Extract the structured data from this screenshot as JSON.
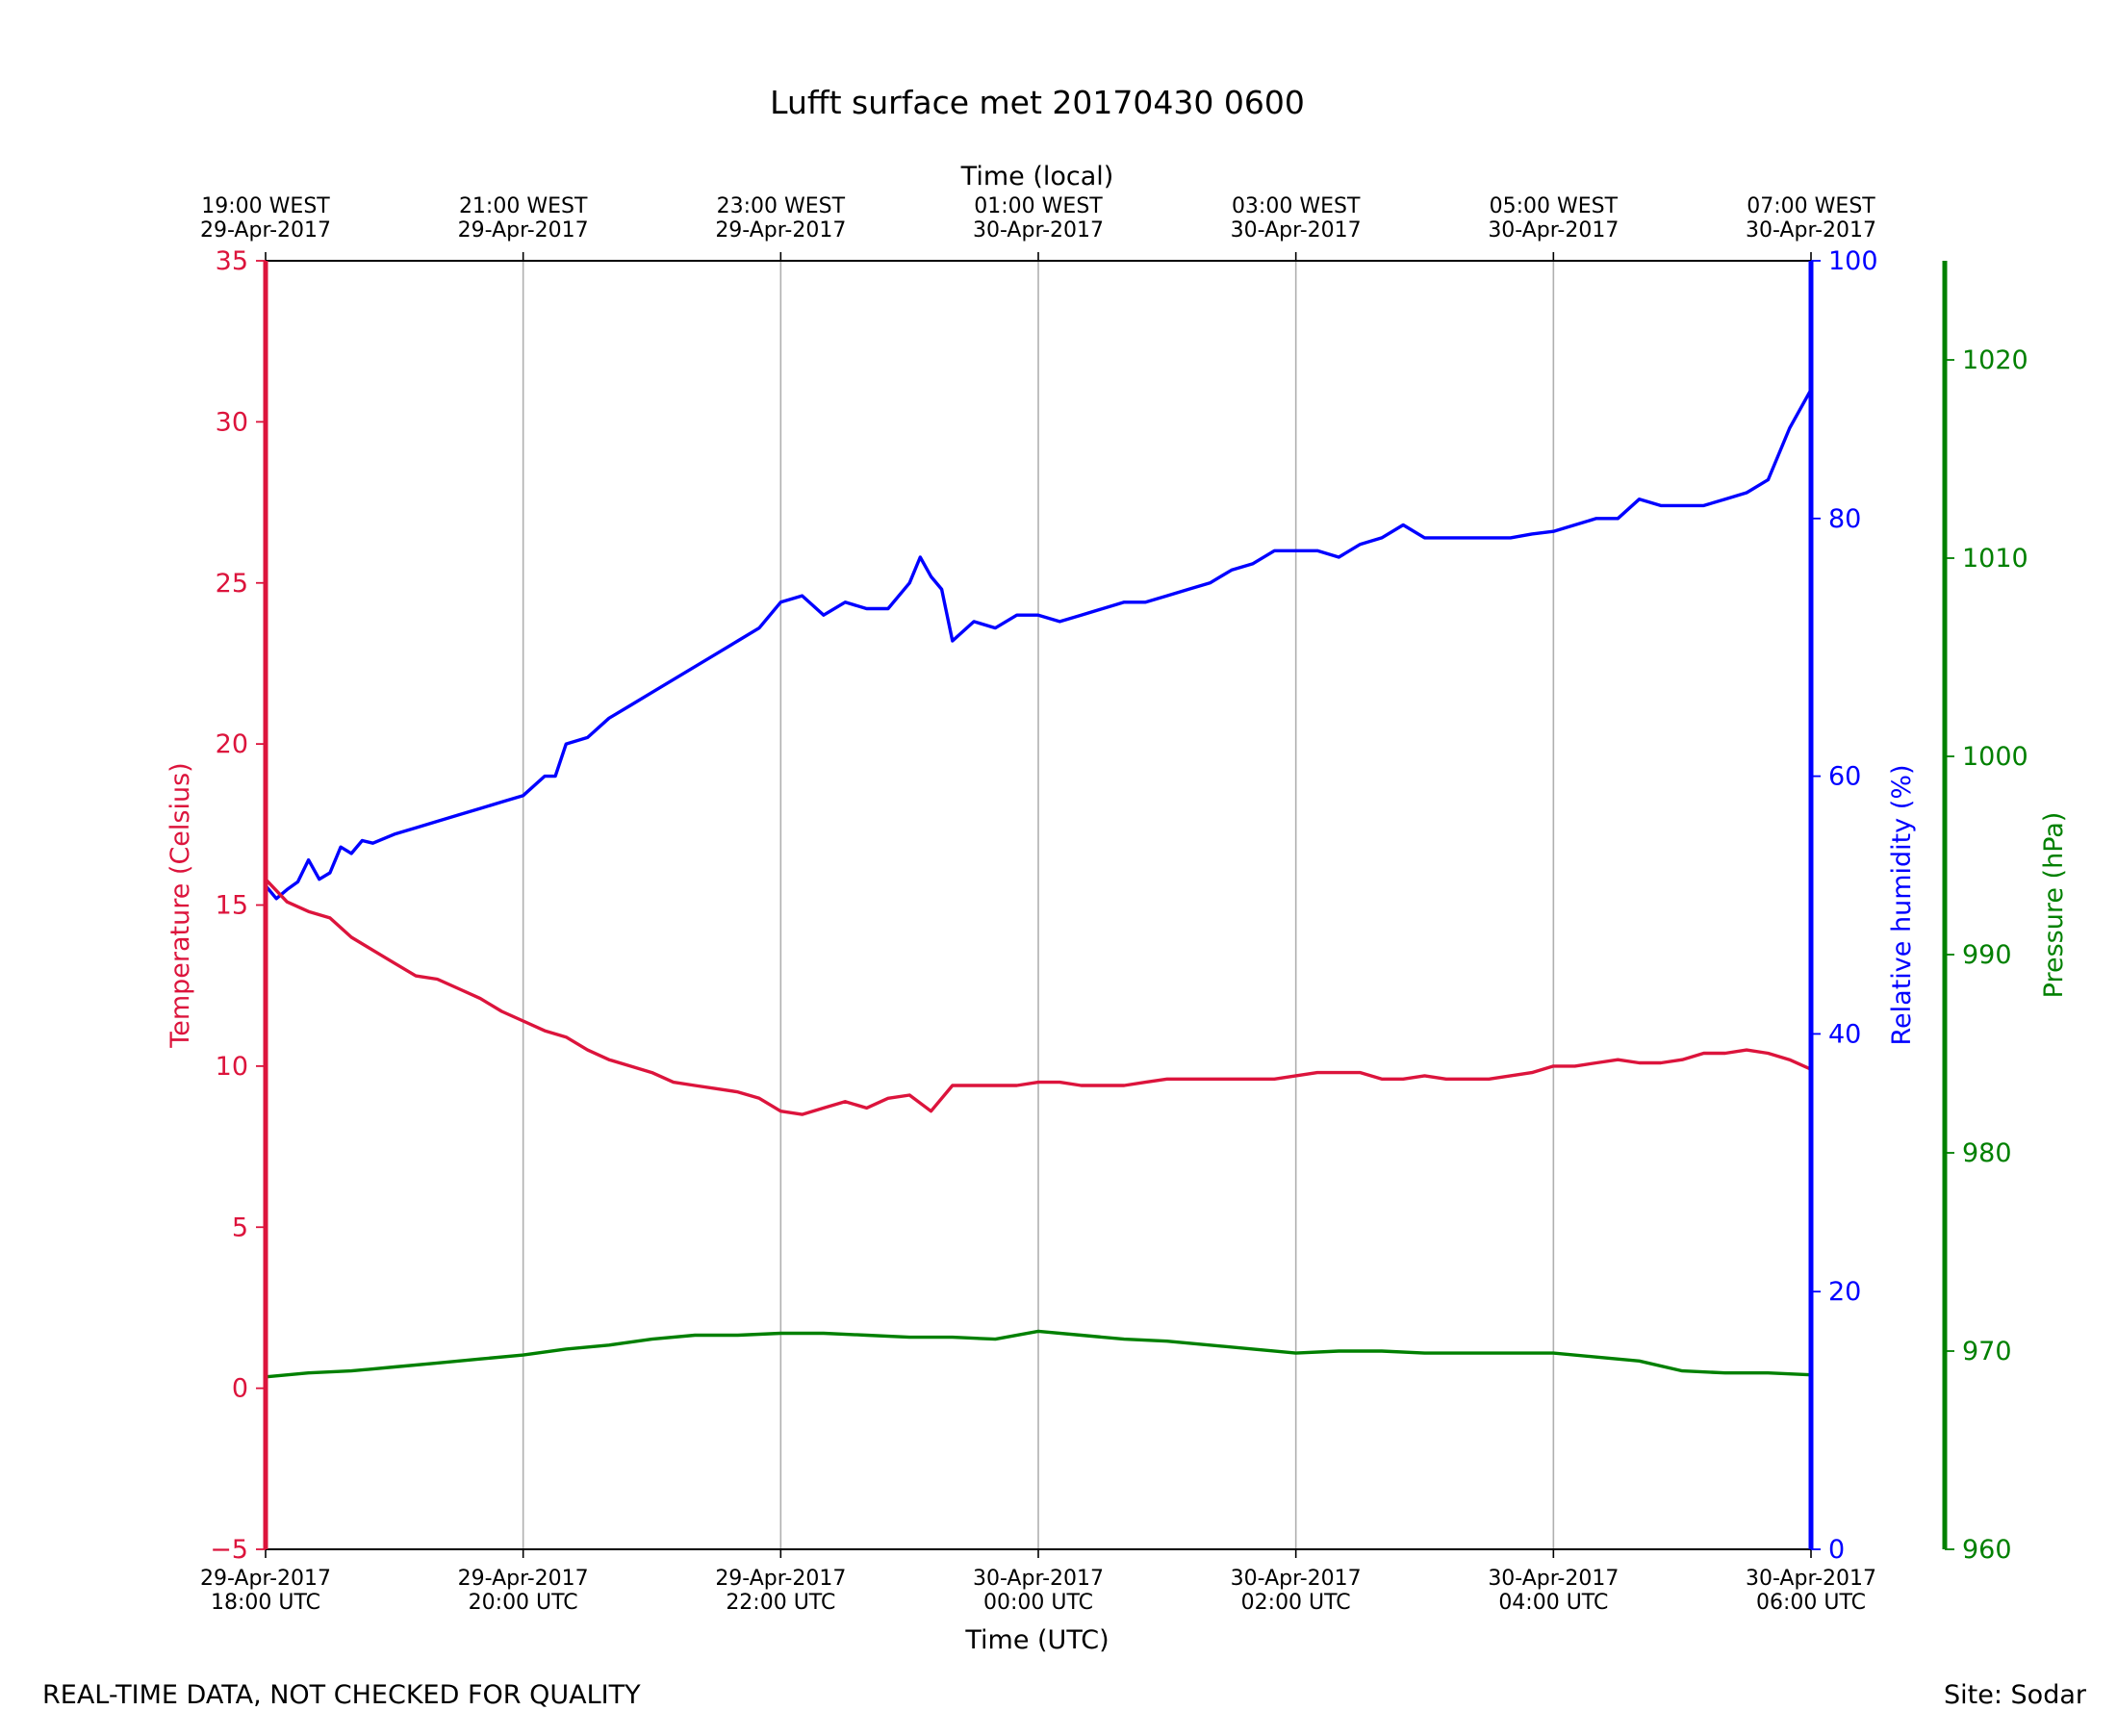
{
  "chart_data": {
    "type": "line",
    "title": "Lufft surface met 20170430 0600",
    "xlabel": "Time (UTC)",
    "top_xlabel": "Time (local)",
    "xlim": [
      "2017-04-29T18:00Z",
      "2017-04-30T06:00Z"
    ],
    "x_ticks": [
      {
        "time": "2017-04-29T18:00Z",
        "bottom": [
          "29-Apr-2017",
          "18:00 UTC"
        ],
        "top": [
          "19:00 WEST",
          "29-Apr-2017"
        ]
      },
      {
        "time": "2017-04-29T20:00Z",
        "bottom": [
          "29-Apr-2017",
          "20:00 UTC"
        ],
        "top": [
          "21:00 WEST",
          "29-Apr-2017"
        ]
      },
      {
        "time": "2017-04-29T22:00Z",
        "bottom": [
          "29-Apr-2017",
          "22:00 UTC"
        ],
        "top": [
          "23:00 WEST",
          "29-Apr-2017"
        ]
      },
      {
        "time": "2017-04-30T00:00Z",
        "bottom": [
          "30-Apr-2017",
          "00:00 UTC"
        ],
        "top": [
          "01:00 WEST",
          "30-Apr-2017"
        ]
      },
      {
        "time": "2017-04-30T02:00Z",
        "bottom": [
          "30-Apr-2017",
          "02:00 UTC"
        ],
        "top": [
          "03:00 WEST",
          "30-Apr-2017"
        ]
      },
      {
        "time": "2017-04-30T04:00Z",
        "bottom": [
          "30-Apr-2017",
          "04:00 UTC"
        ],
        "top": [
          "05:00 WEST",
          "30-Apr-2017"
        ]
      },
      {
        "time": "2017-04-30T06:00Z",
        "bottom": [
          "30-Apr-2017",
          "06:00 UTC"
        ],
        "top": [
          "07:00 WEST",
          "30-Apr-2017"
        ]
      }
    ],
    "grid": {
      "vertical": true,
      "horizontal": false
    },
    "axes": {
      "temperature": {
        "label": "Temperature (Celsius)",
        "ylim": [
          -5,
          35
        ],
        "ticks": [
          -5,
          0,
          5,
          10,
          15,
          20,
          25,
          30,
          35
        ],
        "color": "#dc143c",
        "side": "left"
      },
      "humidity": {
        "label": "Relative humidity (%)",
        "ylim": [
          0,
          100
        ],
        "ticks": [
          0,
          20,
          40,
          60,
          80,
          100
        ],
        "color": "#0000ff",
        "side": "right"
      },
      "pressure": {
        "label": "Pressure (hPa)",
        "ylim": [
          960,
          1025
        ],
        "ticks": [
          960,
          970,
          980,
          990,
          1000,
          1010,
          1020
        ],
        "color": "#008000",
        "side": "right-offset"
      }
    },
    "series": [
      {
        "axis": "humidity",
        "color": "#0000ff",
        "points": [
          [
            "2017-04-29T18:00Z",
            51.5
          ],
          [
            "2017-04-29T18:05Z",
            50.5
          ],
          [
            "2017-04-29T18:10Z",
            51.2
          ],
          [
            "2017-04-29T18:15Z",
            51.8
          ],
          [
            "2017-04-29T18:20Z",
            53.5
          ],
          [
            "2017-04-29T18:25Z",
            52.0
          ],
          [
            "2017-04-29T18:30Z",
            52.5
          ],
          [
            "2017-04-29T18:35Z",
            54.5
          ],
          [
            "2017-04-29T18:40Z",
            54.0
          ],
          [
            "2017-04-29T18:45Z",
            55.0
          ],
          [
            "2017-04-29T18:50Z",
            54.8
          ],
          [
            "2017-04-29T19:00Z",
            55.5
          ],
          [
            "2017-04-29T19:10Z",
            56.0
          ],
          [
            "2017-04-29T19:20Z",
            56.5
          ],
          [
            "2017-04-29T19:30Z",
            57.0
          ],
          [
            "2017-04-29T19:40Z",
            57.5
          ],
          [
            "2017-04-29T19:50Z",
            58.0
          ],
          [
            "2017-04-29T20:00Z",
            58.5
          ],
          [
            "2017-04-29T20:10Z",
            60.0
          ],
          [
            "2017-04-29T20:15Z",
            60.0
          ],
          [
            "2017-04-29T20:20Z",
            62.5
          ],
          [
            "2017-04-29T20:30Z",
            63.0
          ],
          [
            "2017-04-29T20:40Z",
            64.5
          ],
          [
            "2017-04-29T20:50Z",
            65.5
          ],
          [
            "2017-04-29T21:00Z",
            66.5
          ],
          [
            "2017-04-29T21:10Z",
            67.5
          ],
          [
            "2017-04-29T21:20Z",
            68.5
          ],
          [
            "2017-04-29T21:30Z",
            69.5
          ],
          [
            "2017-04-29T21:40Z",
            70.5
          ],
          [
            "2017-04-29T21:50Z",
            71.5
          ],
          [
            "2017-04-29T22:00Z",
            73.5
          ],
          [
            "2017-04-29T22:10Z",
            74.0
          ],
          [
            "2017-04-29T22:20Z",
            72.5
          ],
          [
            "2017-04-29T22:30Z",
            73.5
          ],
          [
            "2017-04-29T22:40Z",
            73.0
          ],
          [
            "2017-04-29T22:50Z",
            73.0
          ],
          [
            "2017-04-29T23:00Z",
            75.0
          ],
          [
            "2017-04-29T23:05Z",
            77.0
          ],
          [
            "2017-04-29T23:10Z",
            75.5
          ],
          [
            "2017-04-29T23:15Z",
            74.5
          ],
          [
            "2017-04-29T23:20Z",
            70.5
          ],
          [
            "2017-04-29T23:30Z",
            72.0
          ],
          [
            "2017-04-29T23:40Z",
            71.5
          ],
          [
            "2017-04-29T23:50Z",
            72.5
          ],
          [
            "2017-04-30T00:00Z",
            72.5
          ],
          [
            "2017-04-30T00:10Z",
            72.0
          ],
          [
            "2017-04-30T00:20Z",
            72.5
          ],
          [
            "2017-04-30T00:30Z",
            73.0
          ],
          [
            "2017-04-30T00:40Z",
            73.5
          ],
          [
            "2017-04-30T00:50Z",
            73.5
          ],
          [
            "2017-04-30T01:00Z",
            74.0
          ],
          [
            "2017-04-30T01:10Z",
            74.5
          ],
          [
            "2017-04-30T01:20Z",
            75.0
          ],
          [
            "2017-04-30T01:30Z",
            76.0
          ],
          [
            "2017-04-30T01:40Z",
            76.5
          ],
          [
            "2017-04-30T01:50Z",
            77.5
          ],
          [
            "2017-04-30T02:00Z",
            77.5
          ],
          [
            "2017-04-30T02:10Z",
            77.5
          ],
          [
            "2017-04-30T02:20Z",
            77.0
          ],
          [
            "2017-04-30T02:30Z",
            78.0
          ],
          [
            "2017-04-30T02:40Z",
            78.5
          ],
          [
            "2017-04-30T02:50Z",
            79.5
          ],
          [
            "2017-04-30T03:00Z",
            78.5
          ],
          [
            "2017-04-30T03:10Z",
            78.5
          ],
          [
            "2017-04-30T03:20Z",
            78.5
          ],
          [
            "2017-04-30T03:30Z",
            78.5
          ],
          [
            "2017-04-30T03:40Z",
            78.5
          ],
          [
            "2017-04-30T03:50Z",
            78.8
          ],
          [
            "2017-04-30T04:00Z",
            79.0
          ],
          [
            "2017-04-30T04:10Z",
            79.5
          ],
          [
            "2017-04-30T04:20Z",
            80.0
          ],
          [
            "2017-04-30T04:30Z",
            80.0
          ],
          [
            "2017-04-30T04:40Z",
            81.5
          ],
          [
            "2017-04-30T04:50Z",
            81.0
          ],
          [
            "2017-04-30T05:00Z",
            81.0
          ],
          [
            "2017-04-30T05:10Z",
            81.0
          ],
          [
            "2017-04-30T05:20Z",
            81.5
          ],
          [
            "2017-04-30T05:30Z",
            82.0
          ],
          [
            "2017-04-30T05:40Z",
            83.0
          ],
          [
            "2017-04-30T05:50Z",
            87.0
          ],
          [
            "2017-04-30T06:00Z",
            90.0
          ]
        ]
      },
      {
        "axis": "temperature",
        "color": "#dc143c",
        "points": [
          [
            "2017-04-29T18:00Z",
            15.8
          ],
          [
            "2017-04-29T18:10Z",
            15.1
          ],
          [
            "2017-04-29T18:20Z",
            14.8
          ],
          [
            "2017-04-29T18:30Z",
            14.6
          ],
          [
            "2017-04-29T18:40Z",
            14.0
          ],
          [
            "2017-04-29T18:50Z",
            13.6
          ],
          [
            "2017-04-29T19:00Z",
            13.2
          ],
          [
            "2017-04-29T19:10Z",
            12.8
          ],
          [
            "2017-04-29T19:20Z",
            12.7
          ],
          [
            "2017-04-29T19:30Z",
            12.4
          ],
          [
            "2017-04-29T19:40Z",
            12.1
          ],
          [
            "2017-04-29T19:50Z",
            11.7
          ],
          [
            "2017-04-29T20:00Z",
            11.4
          ],
          [
            "2017-04-29T20:10Z",
            11.1
          ],
          [
            "2017-04-29T20:20Z",
            10.9
          ],
          [
            "2017-04-29T20:30Z",
            10.5
          ],
          [
            "2017-04-29T20:40Z",
            10.2
          ],
          [
            "2017-04-29T20:50Z",
            10.0
          ],
          [
            "2017-04-29T21:00Z",
            9.8
          ],
          [
            "2017-04-29T21:10Z",
            9.5
          ],
          [
            "2017-04-29T21:20Z",
            9.4
          ],
          [
            "2017-04-29T21:30Z",
            9.3
          ],
          [
            "2017-04-29T21:40Z",
            9.2
          ],
          [
            "2017-04-29T21:50Z",
            9.0
          ],
          [
            "2017-04-29T22:00Z",
            8.6
          ],
          [
            "2017-04-29T22:10Z",
            8.5
          ],
          [
            "2017-04-29T22:20Z",
            8.7
          ],
          [
            "2017-04-29T22:30Z",
            8.9
          ],
          [
            "2017-04-29T22:40Z",
            8.7
          ],
          [
            "2017-04-29T22:50Z",
            9.0
          ],
          [
            "2017-04-29T23:00Z",
            9.1
          ],
          [
            "2017-04-29T23:10Z",
            8.6
          ],
          [
            "2017-04-29T23:20Z",
            9.4
          ],
          [
            "2017-04-29T23:30Z",
            9.4
          ],
          [
            "2017-04-29T23:40Z",
            9.4
          ],
          [
            "2017-04-29T23:50Z",
            9.4
          ],
          [
            "2017-04-30T00:00Z",
            9.5
          ],
          [
            "2017-04-30T00:10Z",
            9.5
          ],
          [
            "2017-04-30T00:20Z",
            9.4
          ],
          [
            "2017-04-30T00:30Z",
            9.4
          ],
          [
            "2017-04-30T00:40Z",
            9.4
          ],
          [
            "2017-04-30T00:50Z",
            9.5
          ],
          [
            "2017-04-30T01:00Z",
            9.6
          ],
          [
            "2017-04-30T01:10Z",
            9.6
          ],
          [
            "2017-04-30T01:20Z",
            9.6
          ],
          [
            "2017-04-30T01:30Z",
            9.6
          ],
          [
            "2017-04-30T01:40Z",
            9.6
          ],
          [
            "2017-04-30T01:50Z",
            9.6
          ],
          [
            "2017-04-30T02:00Z",
            9.7
          ],
          [
            "2017-04-30T02:10Z",
            9.8
          ],
          [
            "2017-04-30T02:20Z",
            9.8
          ],
          [
            "2017-04-30T02:30Z",
            9.8
          ],
          [
            "2017-04-30T02:40Z",
            9.6
          ],
          [
            "2017-04-30T02:50Z",
            9.6
          ],
          [
            "2017-04-30T03:00Z",
            9.7
          ],
          [
            "2017-04-30T03:10Z",
            9.6
          ],
          [
            "2017-04-30T03:20Z",
            9.6
          ],
          [
            "2017-04-30T03:30Z",
            9.6
          ],
          [
            "2017-04-30T03:40Z",
            9.7
          ],
          [
            "2017-04-30T03:50Z",
            9.8
          ],
          [
            "2017-04-30T04:00Z",
            10.0
          ],
          [
            "2017-04-30T04:10Z",
            10.0
          ],
          [
            "2017-04-30T04:20Z",
            10.1
          ],
          [
            "2017-04-30T04:30Z",
            10.2
          ],
          [
            "2017-04-30T04:40Z",
            10.1
          ],
          [
            "2017-04-30T04:50Z",
            10.1
          ],
          [
            "2017-04-30T05:00Z",
            10.2
          ],
          [
            "2017-04-30T05:10Z",
            10.4
          ],
          [
            "2017-04-30T05:20Z",
            10.4
          ],
          [
            "2017-04-30T05:30Z",
            10.5
          ],
          [
            "2017-04-30T05:40Z",
            10.4
          ],
          [
            "2017-04-30T05:50Z",
            10.2
          ],
          [
            "2017-04-30T06:00Z",
            9.9
          ]
        ]
      },
      {
        "axis": "pressure",
        "color": "#008000",
        "points": [
          [
            "2017-04-29T18:00Z",
            968.7
          ],
          [
            "2017-04-29T18:20Z",
            968.9
          ],
          [
            "2017-04-29T18:40Z",
            969.0
          ],
          [
            "2017-04-29T19:00Z",
            969.2
          ],
          [
            "2017-04-29T19:20Z",
            969.4
          ],
          [
            "2017-04-29T19:40Z",
            969.6
          ],
          [
            "2017-04-29T20:00Z",
            969.8
          ],
          [
            "2017-04-29T20:20Z",
            970.1
          ],
          [
            "2017-04-29T20:40Z",
            970.3
          ],
          [
            "2017-04-29T21:00Z",
            970.6
          ],
          [
            "2017-04-29T21:20Z",
            970.8
          ],
          [
            "2017-04-29T21:40Z",
            970.8
          ],
          [
            "2017-04-29T22:00Z",
            970.9
          ],
          [
            "2017-04-29T22:20Z",
            970.9
          ],
          [
            "2017-04-29T22:40Z",
            970.8
          ],
          [
            "2017-04-29T23:00Z",
            970.7
          ],
          [
            "2017-04-29T23:20Z",
            970.7
          ],
          [
            "2017-04-29T23:40Z",
            970.6
          ],
          [
            "2017-04-30T00:00Z",
            971.0
          ],
          [
            "2017-04-30T00:20Z",
            970.8
          ],
          [
            "2017-04-30T00:40Z",
            970.6
          ],
          [
            "2017-04-30T01:00Z",
            970.5
          ],
          [
            "2017-04-30T01:20Z",
            970.3
          ],
          [
            "2017-04-30T01:40Z",
            970.1
          ],
          [
            "2017-04-30T02:00Z",
            969.9
          ],
          [
            "2017-04-30T02:20Z",
            970.0
          ],
          [
            "2017-04-30T02:40Z",
            970.0
          ],
          [
            "2017-04-30T03:00Z",
            969.9
          ],
          [
            "2017-04-30T03:20Z",
            969.9
          ],
          [
            "2017-04-30T03:40Z",
            969.9
          ],
          [
            "2017-04-30T04:00Z",
            969.9
          ],
          [
            "2017-04-30T04:20Z",
            969.7
          ],
          [
            "2017-04-30T04:40Z",
            969.5
          ],
          [
            "2017-04-30T05:00Z",
            969.0
          ],
          [
            "2017-04-30T05:20Z",
            968.9
          ],
          [
            "2017-04-30T05:40Z",
            968.9
          ],
          [
            "2017-04-30T06:00Z",
            968.8
          ]
        ]
      }
    ]
  },
  "footer": {
    "left": "REAL-TIME DATA, NOT CHECKED FOR QUALITY",
    "right": "Site: Sodar"
  }
}
